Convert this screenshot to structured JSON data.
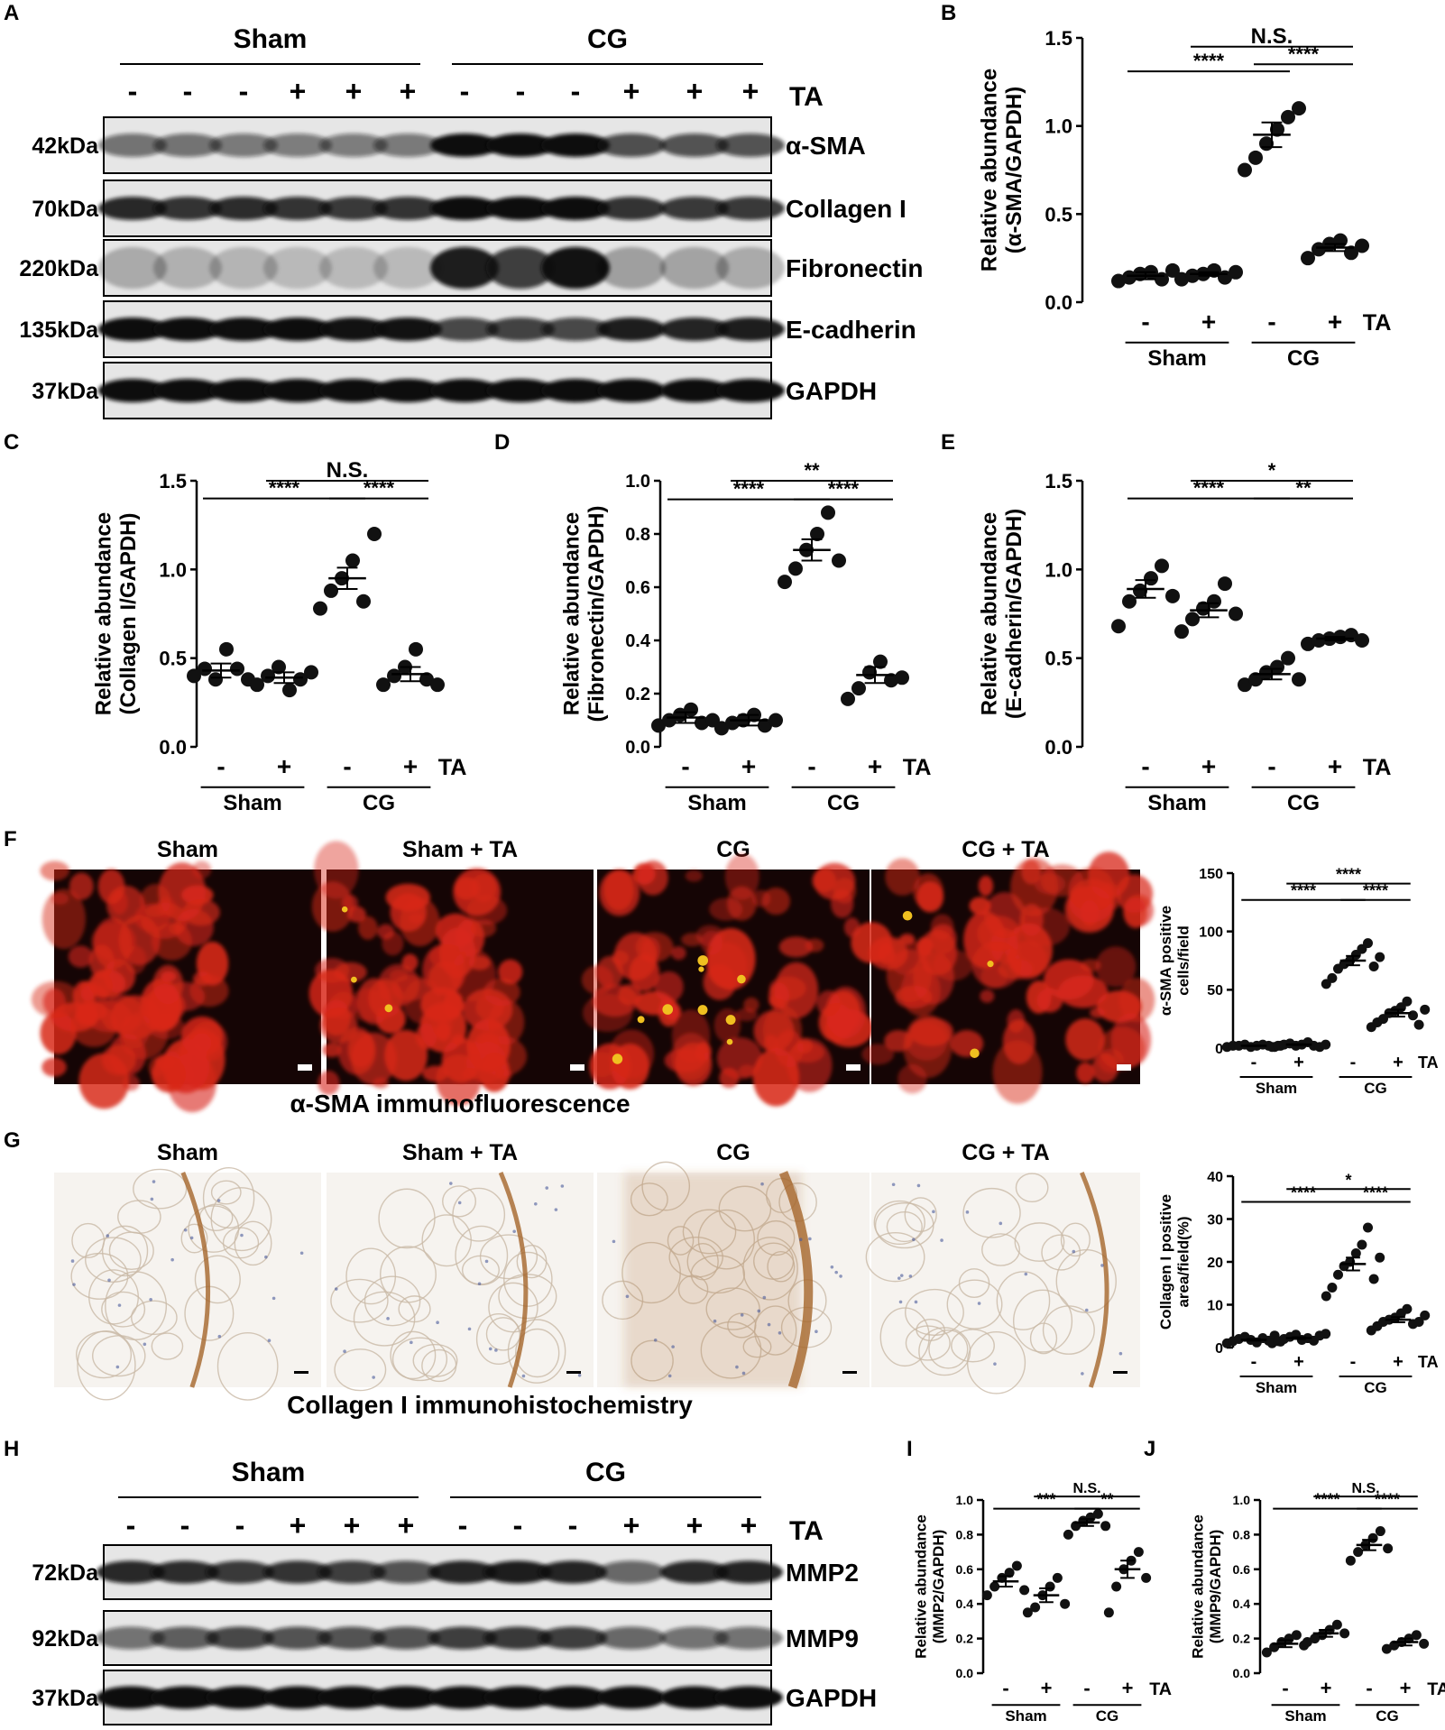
{
  "colors": {
    "fluor_bg": "#150505",
    "fluor_red": "#d8281a",
    "ihc_bg": "#f6f3ef",
    "ihc_brown": "#a5652a",
    "ihc_blue": "#4a5a9a",
    "blot_bg": "#e6e6e6",
    "band": "#111111",
    "point": "#111111"
  },
  "panel_letters": [
    "A",
    "B",
    "C",
    "D",
    "E",
    "F",
    "G",
    "H",
    "I",
    "J"
  ],
  "blot_top": {
    "groups": [
      "Sham",
      "CG"
    ],
    "treatment": [
      "-",
      "-",
      "-",
      "+",
      "+",
      "+",
      "-",
      "-",
      "-",
      "+",
      "+",
      "+"
    ],
    "treatment_label": "TA",
    "rows": [
      {
        "kda": "42kDa",
        "name": "α-SMA",
        "intensity": [
          0.45,
          0.45,
          0.42,
          0.4,
          0.4,
          0.42,
          0.95,
          1,
          0.95,
          0.62,
          0.6,
          0.6
        ]
      },
      {
        "kda": "70kDa",
        "name": "Collagen I",
        "intensity": [
          0.8,
          0.75,
          0.78,
          0.75,
          0.72,
          0.75,
          0.95,
          1,
          0.98,
          0.75,
          0.72,
          0.72
        ]
      },
      {
        "kda": "220kDa",
        "name": "Fibronectin",
        "intensity": [
          0.15,
          0.12,
          0.1,
          0.08,
          0.08,
          0.08,
          0.85,
          0.7,
          0.9,
          0.2,
          0.18,
          0.15
        ]
      },
      {
        "kda": "135kDa",
        "name": "E-cadherin",
        "intensity": [
          0.95,
          0.95,
          0.92,
          0.95,
          0.9,
          0.9,
          0.65,
          0.68,
          0.65,
          0.85,
          0.82,
          0.85
        ]
      },
      {
        "kda": "37kDa",
        "name": "GAPDH",
        "intensity": [
          0.95,
          0.95,
          0.95,
          0.95,
          0.95,
          0.95,
          0.95,
          0.95,
          0.95,
          0.95,
          0.95,
          0.95
        ]
      }
    ]
  },
  "blot_bottom": {
    "groups": [
      "Sham",
      "CG"
    ],
    "treatment": [
      "-",
      "-",
      "-",
      "+",
      "+",
      "+",
      "-",
      "-",
      "-",
      "+",
      "+",
      "+"
    ],
    "treatment_label": "TA",
    "rows": [
      {
        "kda": "72kDa",
        "name": "MMP2",
        "intensity": [
          0.8,
          0.78,
          0.72,
          0.75,
          0.7,
          0.6,
          0.82,
          0.85,
          0.82,
          0.5,
          0.8,
          0.82
        ]
      },
      {
        "kda": "92kDa",
        "name": "MMP9",
        "intensity": [
          0.45,
          0.55,
          0.65,
          0.6,
          0.6,
          0.6,
          0.7,
          0.72,
          0.7,
          0.5,
          0.45,
          0.45
        ]
      },
      {
        "kda": "37kDa",
        "name": "GAPDH",
        "intensity": [
          0.95,
          0.95,
          0.95,
          0.95,
          0.95,
          0.95,
          0.95,
          0.95,
          0.95,
          0.95,
          0.95,
          0.95
        ]
      }
    ]
  },
  "micro": {
    "fluor_titles": [
      "Sham",
      "Sham + TA",
      "CG",
      "CG + TA"
    ],
    "fluor_caption": "α-SMA immunofluorescence",
    "ihc_titles": [
      "Sham",
      "Sham + TA",
      "CG",
      "CG + TA"
    ],
    "ihc_caption": "Collagen I immunohistochemistry"
  },
  "chart_data": [
    {
      "panel": "B",
      "type": "scatter",
      "ylabel": [
        "Relative abundance",
        "(α-SMA/GAPDH)"
      ],
      "ylim": [
        0,
        1.5
      ],
      "yticks": [
        "0.0",
        "0.5",
        "1.0",
        "1.5"
      ],
      "treatment": [
        "-",
        "+",
        "-",
        "+"
      ],
      "treatment_label": "TA",
      "groups": [
        "Sham",
        "CG"
      ],
      "series": [
        {
          "values": [
            0.12,
            0.14,
            0.16,
            0.17,
            0.13,
            0.18
          ],
          "mean": 0.15,
          "sem": 0.02
        },
        {
          "values": [
            0.13,
            0.15,
            0.16,
            0.18,
            0.14,
            0.17
          ],
          "mean": 0.16,
          "sem": 0.01
        },
        {
          "values": [
            0.75,
            0.82,
            0.9,
            0.98,
            1.05,
            1.1
          ],
          "mean": 0.95,
          "sem": 0.07
        },
        {
          "values": [
            0.25,
            0.3,
            0.33,
            0.35,
            0.28,
            0.32
          ],
          "mean": 0.31,
          "sem": 0.02
        }
      ],
      "sig": [
        {
          "a": 0,
          "b": 2,
          "label": "****",
          "y": 1.31
        },
        {
          "a": 2,
          "b": 3,
          "label": "****",
          "y": 1.35
        },
        {
          "a": 1,
          "b": 3,
          "label": "N.S.",
          "y": 1.45
        }
      ]
    },
    {
      "panel": "C",
      "type": "scatter",
      "ylabel": [
        "Relative abundance",
        "(Collagen I/GAPDH)"
      ],
      "ylim": [
        0,
        1.5
      ],
      "yticks": [
        "0.0",
        "0.5",
        "1.0",
        "1.5"
      ],
      "treatment": [
        "-",
        "+",
        "-",
        "+"
      ],
      "treatment_label": "TA",
      "groups": [
        "Sham",
        "CG"
      ],
      "series": [
        {
          "values": [
            0.4,
            0.44,
            0.38,
            0.55,
            0.44,
            0.38
          ],
          "mean": 0.43,
          "sem": 0.04
        },
        {
          "values": [
            0.35,
            0.4,
            0.45,
            0.32,
            0.38,
            0.42
          ],
          "mean": 0.39,
          "sem": 0.03
        },
        {
          "values": [
            0.78,
            0.88,
            0.95,
            1.05,
            0.82,
            1.2
          ],
          "mean": 0.95,
          "sem": 0.06
        },
        {
          "values": [
            0.35,
            0.4,
            0.45,
            0.55,
            0.38,
            0.35
          ],
          "mean": 0.41,
          "sem": 0.04
        }
      ],
      "sig": [
        {
          "a": 0,
          "b": 2,
          "label": "****",
          "y": 1.4
        },
        {
          "a": 2,
          "b": 3,
          "label": "****",
          "y": 1.4
        },
        {
          "a": 1,
          "b": 3,
          "label": "N.S.",
          "y": 1.5
        }
      ]
    },
    {
      "panel": "D",
      "type": "scatter",
      "ylabel": [
        "Relative abundance",
        "(Fibronectin/GAPDH)"
      ],
      "ylim": [
        0,
        1.0
      ],
      "yticks": [
        "0.0",
        "0.2",
        "0.4",
        "0.6",
        "0.8",
        "1.0"
      ],
      "treatment": [
        "-",
        "+",
        "-",
        "+"
      ],
      "treatment_label": "TA",
      "groups": [
        "Sham",
        "CG"
      ],
      "series": [
        {
          "values": [
            0.08,
            0.1,
            0.12,
            0.14,
            0.09,
            0.1
          ],
          "mean": 0.11,
          "sem": 0.02
        },
        {
          "values": [
            0.07,
            0.09,
            0.1,
            0.12,
            0.08,
            0.1
          ],
          "mean": 0.1,
          "sem": 0.02
        },
        {
          "values": [
            0.62,
            0.67,
            0.74,
            0.8,
            0.88,
            0.7
          ],
          "mean": 0.74,
          "sem": 0.04
        },
        {
          "values": [
            0.18,
            0.22,
            0.28,
            0.32,
            0.25,
            0.26
          ],
          "mean": 0.27,
          "sem": 0.03
        }
      ],
      "sig": [
        {
          "a": 0,
          "b": 2,
          "label": "****",
          "y": 0.93
        },
        {
          "a": 2,
          "b": 3,
          "label": "****",
          "y": 0.93
        },
        {
          "a": 1,
          "b": 3,
          "label": "**",
          "y": 1.0
        }
      ]
    },
    {
      "panel": "E",
      "type": "scatter",
      "ylabel": [
        "Relative abundance",
        "(E-cadherin/GAPDH)"
      ],
      "ylim": [
        0,
        1.5
      ],
      "yticks": [
        "0.0",
        "0.5",
        "1.0",
        "1.5"
      ],
      "treatment": [
        "-",
        "+",
        "-",
        "+"
      ],
      "treatment_label": "TA",
      "groups": [
        "Sham",
        "CG"
      ],
      "series": [
        {
          "values": [
            0.68,
            0.82,
            0.88,
            0.95,
            1.02,
            0.85
          ],
          "mean": 0.89,
          "sem": 0.05
        },
        {
          "values": [
            0.65,
            0.72,
            0.78,
            0.82,
            0.92,
            0.75
          ],
          "mean": 0.77,
          "sem": 0.04
        },
        {
          "values": [
            0.35,
            0.38,
            0.42,
            0.45,
            0.5,
            0.38
          ],
          "mean": 0.41,
          "sem": 0.03
        },
        {
          "values": [
            0.58,
            0.6,
            0.61,
            0.62,
            0.63,
            0.6
          ],
          "mean": 0.61,
          "sem": 0.01
        }
      ],
      "sig": [
        {
          "a": 0,
          "b": 2,
          "label": "****",
          "y": 1.4
        },
        {
          "a": 2,
          "b": 3,
          "label": "**",
          "y": 1.4
        },
        {
          "a": 1,
          "b": 3,
          "label": "*",
          "y": 1.5
        }
      ]
    },
    {
      "panel": "F",
      "type": "scatter",
      "ylabel": [
        "α-SMA positive",
        "cells/field"
      ],
      "ylim": [
        0,
        150
      ],
      "yticks": [
        "0",
        "50",
        "100",
        "150"
      ],
      "treatment": [
        "-",
        "+",
        "-",
        "+"
      ],
      "treatment_label": "TA",
      "groups": [
        "Sham",
        "CG"
      ],
      "series": [
        {
          "values": [
            1,
            2,
            2,
            3,
            1,
            2,
            3,
            2,
            1,
            2
          ],
          "mean": 2,
          "sem": 0.3
        },
        {
          "values": [
            1,
            2,
            3,
            4,
            2,
            3,
            5,
            2,
            1,
            3
          ],
          "mean": 3,
          "sem": 0.4
        },
        {
          "values": [
            55,
            60,
            68,
            72,
            75,
            80,
            85,
            90,
            70,
            78
          ],
          "mean": 75,
          "sem": 4
        },
        {
          "values": [
            18,
            22,
            25,
            30,
            32,
            35,
            40,
            28,
            20,
            33
          ],
          "mean": 30,
          "sem": 3
        }
      ],
      "sig": [
        {
          "a": 0,
          "b": 2,
          "label": "****",
          "y": 127
        },
        {
          "a": 2,
          "b": 3,
          "label": "****",
          "y": 127
        },
        {
          "a": 1,
          "b": 3,
          "label": "****",
          "y": 141
        }
      ]
    },
    {
      "panel": "G",
      "type": "scatter",
      "ylabel": [
        "Collagen I positive",
        "area/field(%)"
      ],
      "ylim": [
        0,
        40
      ],
      "yticks": [
        "0",
        "10",
        "20",
        "30",
        "40"
      ],
      "treatment": [
        "-",
        "+",
        "-",
        "+"
      ],
      "treatment_label": "TA",
      "groups": [
        "Sham",
        "CG"
      ],
      "series": [
        {
          "values": [
            1,
            1.5,
            2,
            2.5,
            1.8,
            1.2,
            2.2,
            1.6,
            2.8,
            1.4
          ],
          "mean": 1.8,
          "sem": 0.2
        },
        {
          "values": [
            1,
            1.5,
            2,
            2.5,
            3,
            1.8,
            2.2,
            1.6,
            2.8,
            3.2
          ],
          "mean": 2.2,
          "sem": 0.2
        },
        {
          "values": [
            12,
            14,
            17,
            19,
            20,
            22,
            24,
            28,
            16,
            21
          ],
          "mean": 19.5,
          "sem": 1.5
        },
        {
          "values": [
            4,
            5,
            6,
            6.5,
            7,
            8,
            9,
            5.5,
            6,
            7.5
          ],
          "mean": 6.5,
          "sem": 0.6
        }
      ],
      "sig": [
        {
          "a": 0,
          "b": 2,
          "label": "****",
          "y": 34
        },
        {
          "a": 2,
          "b": 3,
          "label": "****",
          "y": 34
        },
        {
          "a": 1,
          "b": 3,
          "label": "*",
          "y": 37
        }
      ]
    },
    {
      "panel": "I",
      "type": "scatter",
      "ylabel": [
        "Relative abundance",
        "(MMP2/GAPDH)"
      ],
      "ylim": [
        0,
        1.0
      ],
      "yticks": [
        "0.0",
        "0.2",
        "0.4",
        "0.6",
        "0.8",
        "1.0"
      ],
      "treatment": [
        "-",
        "+",
        "-",
        "+"
      ],
      "treatment_label": "TA",
      "groups": [
        "Sham",
        "CG"
      ],
      "series": [
        {
          "values": [
            0.45,
            0.5,
            0.55,
            0.58,
            0.62,
            0.48
          ],
          "mean": 0.53,
          "sem": 0.03
        },
        {
          "values": [
            0.35,
            0.38,
            0.45,
            0.5,
            0.55,
            0.4
          ],
          "mean": 0.45,
          "sem": 0.04
        },
        {
          "values": [
            0.8,
            0.85,
            0.88,
            0.9,
            0.92,
            0.85
          ],
          "mean": 0.87,
          "sem": 0.02
        },
        {
          "values": [
            0.35,
            0.5,
            0.6,
            0.65,
            0.7,
            0.55
          ],
          "mean": 0.6,
          "sem": 0.05
        }
      ],
      "sig": [
        {
          "a": 0,
          "b": 2,
          "label": "***",
          "y": 0.95
        },
        {
          "a": 2,
          "b": 3,
          "label": "**",
          "y": 0.95
        },
        {
          "a": 1,
          "b": 3,
          "label": "N.S.",
          "y": 1.02
        }
      ]
    },
    {
      "panel": "J",
      "type": "scatter",
      "ylabel": [
        "Relative abundance",
        "(MMP9/GAPDH)"
      ],
      "ylim": [
        0,
        1.0
      ],
      "yticks": [
        "0.0",
        "0.2",
        "0.4",
        "0.6",
        "0.8",
        "1.0"
      ],
      "treatment": [
        "-",
        "+",
        "-",
        "+"
      ],
      "treatment_label": "TA",
      "groups": [
        "Sham",
        "CG"
      ],
      "series": [
        {
          "values": [
            0.12,
            0.15,
            0.18,
            0.2,
            0.22,
            0.16
          ],
          "mean": 0.17,
          "sem": 0.02
        },
        {
          "values": [
            0.18,
            0.2,
            0.22,
            0.25,
            0.28,
            0.23
          ],
          "mean": 0.23,
          "sem": 0.02
        },
        {
          "values": [
            0.65,
            0.7,
            0.74,
            0.78,
            0.82,
            0.72
          ],
          "mean": 0.74,
          "sem": 0.03
        },
        {
          "values": [
            0.14,
            0.16,
            0.18,
            0.2,
            0.22,
            0.17
          ],
          "mean": 0.18,
          "sem": 0.02
        }
      ],
      "sig": [
        {
          "a": 0,
          "b": 2,
          "label": "****",
          "y": 0.95
        },
        {
          "a": 2,
          "b": 3,
          "label": "****",
          "y": 0.95
        },
        {
          "a": 1,
          "b": 3,
          "label": "N.S.",
          "y": 1.02
        }
      ]
    }
  ]
}
